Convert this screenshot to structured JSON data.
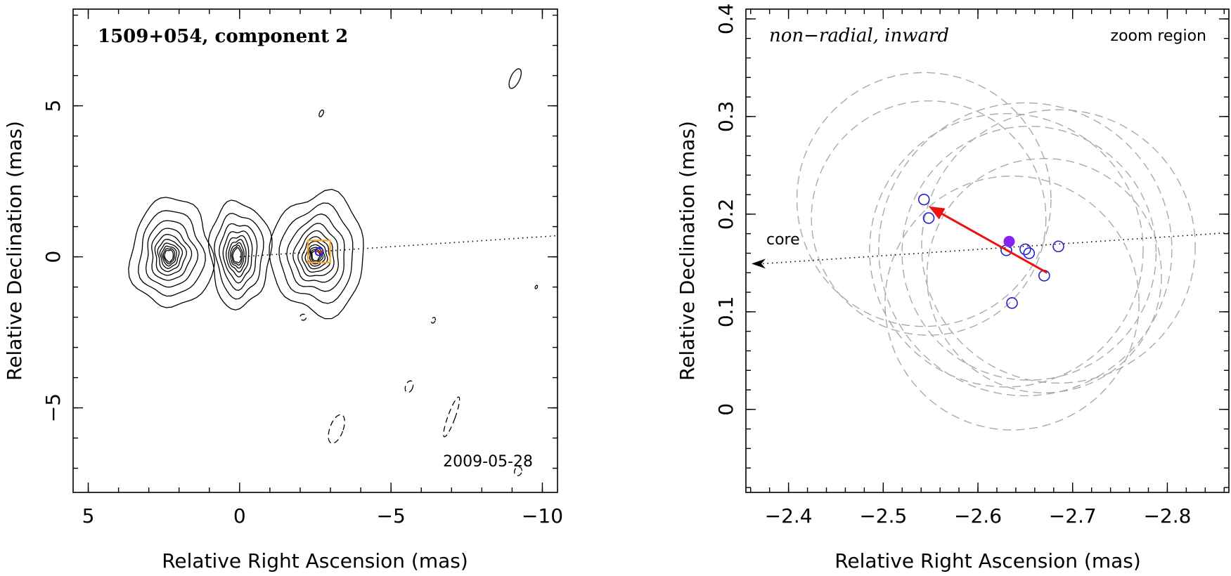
{
  "chart_data": [
    {
      "type": "contour",
      "title": "1509+054, component 2",
      "annotation": "2009-05-28",
      "xlabel": "Relative Right Ascension (mas)",
      "ylabel": "Relative Declination (mas)",
      "xlim": [
        5.5,
        -10.5
      ],
      "ylim": [
        -7.8,
        8.2
      ],
      "x_ticks": [
        5,
        0,
        -5,
        -10
      ],
      "x_tick_labels": [
        "5",
        "0",
        "−5",
        "−10"
      ],
      "y_ticks": [
        5,
        0,
        -5
      ],
      "y_tick_labels": [
        "5",
        "0",
        "−5"
      ],
      "components": [
        {
          "name": "component-a",
          "x": 2.25,
          "y": 0.1,
          "rx": 1.35,
          "ry": 1.8,
          "levels": 10
        },
        {
          "name": "component-b",
          "x": 0.0,
          "y": 0.1,
          "rx": 1.0,
          "ry": 1.75,
          "levels": 9
        },
        {
          "name": "component-c",
          "x": -2.6,
          "y": 0.1,
          "rx": 1.55,
          "ry": 2.0,
          "levels": 11
        }
      ],
      "negative_contours": [
        {
          "x": -3.2,
          "y": -5.7,
          "rx": 0.22,
          "ry": 0.5
        },
        {
          "x": -7.0,
          "y": -5.3,
          "rx": 0.12,
          "ry": 0.7
        },
        {
          "x": -5.6,
          "y": -4.3,
          "rx": 0.12,
          "ry": 0.2
        },
        {
          "x": -9.2,
          "y": -7.1,
          "rx": 0.12,
          "ry": 0.15
        },
        {
          "x": -2.1,
          "y": -2.0,
          "rx": 0.1,
          "ry": 0.1
        },
        {
          "x": -6.4,
          "y": -2.1,
          "rx": 0.06,
          "ry": 0.1
        }
      ],
      "positive_blobs": [
        {
          "x": -9.1,
          "y": 5.9,
          "rx": 0.15,
          "ry": 0.35
        },
        {
          "x": -2.7,
          "y": 4.75,
          "rx": 0.06,
          "ry": 0.12
        },
        {
          "x": -9.8,
          "y": -1.0,
          "rx": 0.02,
          "ry": 0.06
        }
      ],
      "jet_axis": {
        "x": [
          0,
          -10.5
        ],
        "y": [
          0,
          0.7
        ]
      },
      "zoom_box": {
        "x": [
          -2.4,
          -2.85
        ],
        "y": [
          -0.05,
          0.4
        ],
        "color": "#f5a623"
      },
      "marker": {
        "x": -2.63,
        "y": 0.17,
        "color": "#2222cc",
        "accent": "#dd2222"
      }
    },
    {
      "type": "scatter",
      "title": "non−radial, inward",
      "annotation": "zoom region",
      "xlabel": "Relative Right Ascension (mas)",
      "ylabel": "Relative Declination (mas)",
      "xlim": [
        -2.355,
        -2.865
      ],
      "ylim": [
        -0.085,
        0.41
      ],
      "x_ticks": [
        -2.4,
        -2.5,
        -2.6,
        -2.7,
        -2.8
      ],
      "x_tick_labels": [
        "−2.4",
        "−2.5",
        "−2.6",
        "−2.7",
        "−2.8"
      ],
      "y_ticks": [
        0,
        0.1,
        0.2,
        0.3,
        0.4
      ],
      "y_tick_labels": [
        "0",
        "0.1",
        "0.2",
        "0.3",
        "0.4"
      ],
      "open_points": {
        "color": "#2222cc",
        "x": [
          -2.543,
          -2.548,
          -2.63,
          -2.636,
          -2.65,
          -2.654,
          -2.67,
          -2.685
        ],
        "y": [
          0.215,
          0.196,
          0.163,
          0.109,
          0.164,
          0.16,
          0.137,
          0.167
        ]
      },
      "mean_point": {
        "x": -2.633,
        "y": 0.172,
        "color": "#8822ee"
      },
      "motion_arrow": {
        "from": [
          -2.673,
          0.14
        ],
        "to": [
          -2.548,
          0.208
        ],
        "color": "#ee1111"
      },
      "core_direction": {
        "label": "core",
        "from": [
          -2.865,
          0.181
        ],
        "to": [
          -2.355,
          0.149
        ]
      },
      "uncertainty_circles": {
        "color": "#aaaaaa",
        "cx": [
          -2.543,
          -2.548,
          -2.63,
          -2.636,
          -2.65,
          -2.654,
          -2.67,
          -2.685
        ],
        "cy": [
          0.215,
          0.196,
          0.163,
          0.109,
          0.164,
          0.16,
          0.137,
          0.167
        ],
        "r": [
          0.13,
          0.12,
          0.14,
          0.13,
          0.15,
          0.13,
          0.12,
          0.14
        ]
      }
    }
  ]
}
